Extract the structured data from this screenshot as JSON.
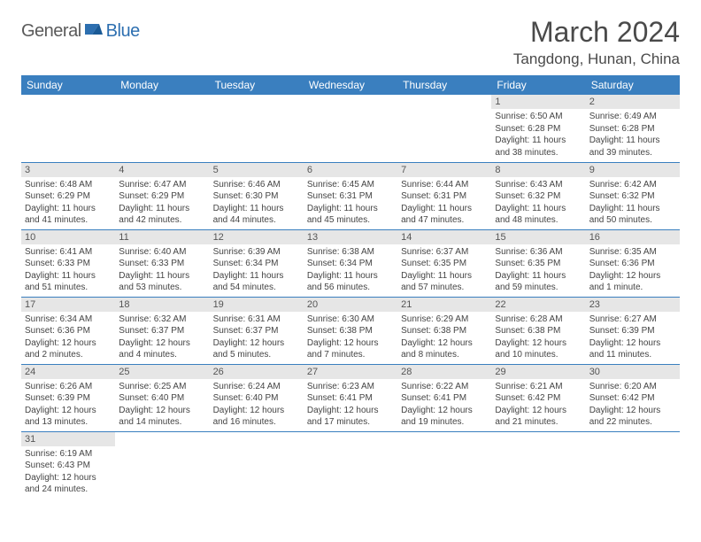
{
  "logo": {
    "general": "General",
    "blue": "Blue"
  },
  "header": {
    "month_title": "March 2024",
    "location": "Tangdong, Hunan, China"
  },
  "colors": {
    "header_bg": "#3a7fbf",
    "header_text": "#ffffff",
    "daynum_bg": "#e6e6e6",
    "border": "#3a7fbf",
    "logo_blue": "#2d6fb0",
    "logo_gray": "#5a5a5a"
  },
  "weekdays": [
    "Sunday",
    "Monday",
    "Tuesday",
    "Wednesday",
    "Thursday",
    "Friday",
    "Saturday"
  ],
  "grid": [
    [
      null,
      null,
      null,
      null,
      null,
      {
        "num": "1",
        "sunrise": "Sunrise: 6:50 AM",
        "sunset": "Sunset: 6:28 PM",
        "daylight": "Daylight: 11 hours and 38 minutes."
      },
      {
        "num": "2",
        "sunrise": "Sunrise: 6:49 AM",
        "sunset": "Sunset: 6:28 PM",
        "daylight": "Daylight: 11 hours and 39 minutes."
      }
    ],
    [
      {
        "num": "3",
        "sunrise": "Sunrise: 6:48 AM",
        "sunset": "Sunset: 6:29 PM",
        "daylight": "Daylight: 11 hours and 41 minutes."
      },
      {
        "num": "4",
        "sunrise": "Sunrise: 6:47 AM",
        "sunset": "Sunset: 6:29 PM",
        "daylight": "Daylight: 11 hours and 42 minutes."
      },
      {
        "num": "5",
        "sunrise": "Sunrise: 6:46 AM",
        "sunset": "Sunset: 6:30 PM",
        "daylight": "Daylight: 11 hours and 44 minutes."
      },
      {
        "num": "6",
        "sunrise": "Sunrise: 6:45 AM",
        "sunset": "Sunset: 6:31 PM",
        "daylight": "Daylight: 11 hours and 45 minutes."
      },
      {
        "num": "7",
        "sunrise": "Sunrise: 6:44 AM",
        "sunset": "Sunset: 6:31 PM",
        "daylight": "Daylight: 11 hours and 47 minutes."
      },
      {
        "num": "8",
        "sunrise": "Sunrise: 6:43 AM",
        "sunset": "Sunset: 6:32 PM",
        "daylight": "Daylight: 11 hours and 48 minutes."
      },
      {
        "num": "9",
        "sunrise": "Sunrise: 6:42 AM",
        "sunset": "Sunset: 6:32 PM",
        "daylight": "Daylight: 11 hours and 50 minutes."
      }
    ],
    [
      {
        "num": "10",
        "sunrise": "Sunrise: 6:41 AM",
        "sunset": "Sunset: 6:33 PM",
        "daylight": "Daylight: 11 hours and 51 minutes."
      },
      {
        "num": "11",
        "sunrise": "Sunrise: 6:40 AM",
        "sunset": "Sunset: 6:33 PM",
        "daylight": "Daylight: 11 hours and 53 minutes."
      },
      {
        "num": "12",
        "sunrise": "Sunrise: 6:39 AM",
        "sunset": "Sunset: 6:34 PM",
        "daylight": "Daylight: 11 hours and 54 minutes."
      },
      {
        "num": "13",
        "sunrise": "Sunrise: 6:38 AM",
        "sunset": "Sunset: 6:34 PM",
        "daylight": "Daylight: 11 hours and 56 minutes."
      },
      {
        "num": "14",
        "sunrise": "Sunrise: 6:37 AM",
        "sunset": "Sunset: 6:35 PM",
        "daylight": "Daylight: 11 hours and 57 minutes."
      },
      {
        "num": "15",
        "sunrise": "Sunrise: 6:36 AM",
        "sunset": "Sunset: 6:35 PM",
        "daylight": "Daylight: 11 hours and 59 minutes."
      },
      {
        "num": "16",
        "sunrise": "Sunrise: 6:35 AM",
        "sunset": "Sunset: 6:36 PM",
        "daylight": "Daylight: 12 hours and 1 minute."
      }
    ],
    [
      {
        "num": "17",
        "sunrise": "Sunrise: 6:34 AM",
        "sunset": "Sunset: 6:36 PM",
        "daylight": "Daylight: 12 hours and 2 minutes."
      },
      {
        "num": "18",
        "sunrise": "Sunrise: 6:32 AM",
        "sunset": "Sunset: 6:37 PM",
        "daylight": "Daylight: 12 hours and 4 minutes."
      },
      {
        "num": "19",
        "sunrise": "Sunrise: 6:31 AM",
        "sunset": "Sunset: 6:37 PM",
        "daylight": "Daylight: 12 hours and 5 minutes."
      },
      {
        "num": "20",
        "sunrise": "Sunrise: 6:30 AM",
        "sunset": "Sunset: 6:38 PM",
        "daylight": "Daylight: 12 hours and 7 minutes."
      },
      {
        "num": "21",
        "sunrise": "Sunrise: 6:29 AM",
        "sunset": "Sunset: 6:38 PM",
        "daylight": "Daylight: 12 hours and 8 minutes."
      },
      {
        "num": "22",
        "sunrise": "Sunrise: 6:28 AM",
        "sunset": "Sunset: 6:38 PM",
        "daylight": "Daylight: 12 hours and 10 minutes."
      },
      {
        "num": "23",
        "sunrise": "Sunrise: 6:27 AM",
        "sunset": "Sunset: 6:39 PM",
        "daylight": "Daylight: 12 hours and 11 minutes."
      }
    ],
    [
      {
        "num": "24",
        "sunrise": "Sunrise: 6:26 AM",
        "sunset": "Sunset: 6:39 PM",
        "daylight": "Daylight: 12 hours and 13 minutes."
      },
      {
        "num": "25",
        "sunrise": "Sunrise: 6:25 AM",
        "sunset": "Sunset: 6:40 PM",
        "daylight": "Daylight: 12 hours and 14 minutes."
      },
      {
        "num": "26",
        "sunrise": "Sunrise: 6:24 AM",
        "sunset": "Sunset: 6:40 PM",
        "daylight": "Daylight: 12 hours and 16 minutes."
      },
      {
        "num": "27",
        "sunrise": "Sunrise: 6:23 AM",
        "sunset": "Sunset: 6:41 PM",
        "daylight": "Daylight: 12 hours and 17 minutes."
      },
      {
        "num": "28",
        "sunrise": "Sunrise: 6:22 AM",
        "sunset": "Sunset: 6:41 PM",
        "daylight": "Daylight: 12 hours and 19 minutes."
      },
      {
        "num": "29",
        "sunrise": "Sunrise: 6:21 AM",
        "sunset": "Sunset: 6:42 PM",
        "daylight": "Daylight: 12 hours and 21 minutes."
      },
      {
        "num": "30",
        "sunrise": "Sunrise: 6:20 AM",
        "sunset": "Sunset: 6:42 PM",
        "daylight": "Daylight: 12 hours and 22 minutes."
      }
    ],
    [
      {
        "num": "31",
        "sunrise": "Sunrise: 6:19 AM",
        "sunset": "Sunset: 6:43 PM",
        "daylight": "Daylight: 12 hours and 24 minutes."
      },
      null,
      null,
      null,
      null,
      null,
      null
    ]
  ]
}
